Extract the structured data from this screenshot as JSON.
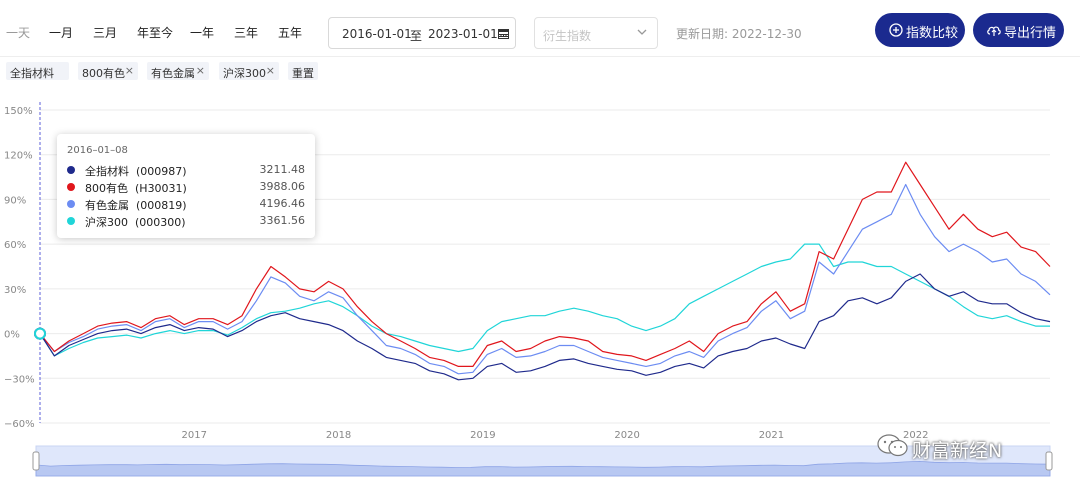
{
  "toolbar": {
    "ranges": [
      "一天",
      "一月",
      "三月",
      "年至今",
      "一年",
      "三年",
      "五年"
    ],
    "date_start": "2016-01-01",
    "date_sep": "至",
    "date_end": "2023-01-01",
    "derivative_placeholder": "衍生指数",
    "update_label": "更新日期: 2022-12-30",
    "compare_label": "指数比较",
    "export_label": "导出行情"
  },
  "tags": [
    {
      "label": "全指材料",
      "removable": false
    },
    {
      "label": "800有色",
      "removable": true
    },
    {
      "label": "有色金属",
      "removable": true
    },
    {
      "label": "沪深300",
      "removable": true
    }
  ],
  "reset_label": "重置",
  "remove_glyph": "×",
  "tooltip": {
    "date": "2016–01–08",
    "rows": [
      {
        "name": "全指材料",
        "code": "(000987)",
        "value": "3211.48",
        "color": "#1f2a8c"
      },
      {
        "name": "800有色",
        "code": "(H30031)",
        "value": "3988.06",
        "color": "#e0161c"
      },
      {
        "name": "有色金属",
        "code": "(000819)",
        "value": "4196.46",
        "color": "#6c8cf2"
      },
      {
        "name": "沪深300",
        "code": "(000300)",
        "value": "3361.56",
        "color": "#20d5d8"
      }
    ]
  },
  "watermark": "财富新经N",
  "chart_data": {
    "type": "line",
    "ylabel": "",
    "xlabel": "",
    "ylim": [
      -60,
      150
    ],
    "yticks": [
      -60,
      -30,
      0,
      30,
      60,
      90,
      120,
      150
    ],
    "ytick_labels": [
      "−60%",
      "−30%",
      "0%",
      "30%",
      "60%",
      "90%",
      "120%",
      "150%"
    ],
    "xlim": [
      2016.0,
      2023.0
    ],
    "xticks": [
      2017,
      2018,
      2019,
      2020,
      2021,
      2022
    ],
    "xtick_labels": [
      "2017",
      "2018",
      "2019",
      "2020",
      "2021",
      "2022"
    ],
    "grid": true,
    "x": [
      2016.0,
      2016.1,
      2016.2,
      2016.3,
      2016.4,
      2016.5,
      2016.6,
      2016.7,
      2016.8,
      2016.9,
      2017.0,
      2017.1,
      2017.2,
      2017.3,
      2017.4,
      2017.5,
      2017.6,
      2017.7,
      2017.8,
      2017.9,
      2018.0,
      2018.1,
      2018.2,
      2018.3,
      2018.4,
      2018.5,
      2018.6,
      2018.7,
      2018.8,
      2018.9,
      2019.0,
      2019.1,
      2019.2,
      2019.3,
      2019.4,
      2019.5,
      2019.6,
      2019.7,
      2019.8,
      2019.9,
      2020.0,
      2020.1,
      2020.2,
      2020.3,
      2020.4,
      2020.5,
      2020.6,
      2020.7,
      2020.8,
      2020.9,
      2021.0,
      2021.1,
      2021.2,
      2021.3,
      2021.4,
      2021.5,
      2021.6,
      2021.7,
      2021.8,
      2021.9,
      2022.0,
      2022.1,
      2022.2,
      2022.3,
      2022.4,
      2022.5,
      2022.6,
      2022.7,
      2022.8,
      2022.9,
      2023.0
    ],
    "series": [
      {
        "name": "全指材料 (000987)",
        "color": "#1f2a8c",
        "values": [
          0,
          -15,
          -8,
          -4,
          0,
          2,
          3,
          0,
          4,
          6,
          2,
          4,
          3,
          -2,
          2,
          8,
          12,
          14,
          10,
          8,
          6,
          2,
          -5,
          -10,
          -16,
          -18,
          -20,
          -25,
          -27,
          -31,
          -30,
          -22,
          -20,
          -26,
          -25,
          -22,
          -18,
          -17,
          -20,
          -22,
          -24,
          -25,
          -28,
          -26,
          -22,
          -20,
          -23,
          -15,
          -12,
          -10,
          -5,
          -3,
          -7,
          -10,
          8,
          12,
          22,
          24,
          20,
          24,
          35,
          40,
          30,
          25,
          28,
          22,
          20,
          20,
          14,
          10,
          8
        ]
      },
      {
        "name": "800有色 (H30031)",
        "color": "#e0161c",
        "values": [
          0,
          -12,
          -5,
          0,
          5,
          7,
          8,
          4,
          10,
          12,
          6,
          10,
          10,
          6,
          12,
          30,
          45,
          38,
          30,
          28,
          35,
          30,
          18,
          8,
          0,
          -5,
          -10,
          -16,
          -18,
          -22,
          -22,
          -8,
          -5,
          -12,
          -10,
          -5,
          -2,
          -3,
          -5,
          -12,
          -14,
          -15,
          -18,
          -14,
          -10,
          -5,
          -12,
          0,
          5,
          8,
          20,
          28,
          15,
          20,
          55,
          50,
          70,
          90,
          95,
          95,
          115,
          100,
          85,
          70,
          80,
          70,
          65,
          68,
          58,
          55,
          45
        ]
      },
      {
        "name": "有色金属 (000819)",
        "color": "#6c8cf2",
        "values": [
          0,
          -12,
          -6,
          -2,
          3,
          5,
          6,
          2,
          8,
          10,
          4,
          8,
          8,
          3,
          8,
          22,
          38,
          34,
          25,
          22,
          28,
          24,
          12,
          2,
          -8,
          -10,
          -14,
          -20,
          -22,
          -27,
          -26,
          -14,
          -10,
          -16,
          -15,
          -12,
          -8,
          -8,
          -12,
          -16,
          -18,
          -20,
          -22,
          -20,
          -15,
          -12,
          -16,
          -5,
          0,
          4,
          15,
          22,
          10,
          15,
          48,
          40,
          55,
          70,
          75,
          80,
          100,
          80,
          65,
          55,
          60,
          55,
          48,
          50,
          40,
          35,
          26
        ]
      },
      {
        "name": "沪深300 (000300)",
        "color": "#20d5d8",
        "values": [
          0,
          -15,
          -10,
          -6,
          -3,
          -2,
          -1,
          -3,
          0,
          2,
          0,
          2,
          2,
          -1,
          4,
          10,
          14,
          15,
          17,
          20,
          22,
          18,
          12,
          5,
          0,
          -2,
          -5,
          -8,
          -10,
          -12,
          -10,
          2,
          8,
          10,
          12,
          12,
          15,
          17,
          15,
          12,
          10,
          5,
          2,
          5,
          10,
          20,
          25,
          30,
          35,
          40,
          45,
          48,
          50,
          60,
          60,
          45,
          48,
          48,
          45,
          45,
          40,
          35,
          30,
          25,
          18,
          12,
          10,
          12,
          8,
          5,
          5
        ]
      }
    ]
  }
}
